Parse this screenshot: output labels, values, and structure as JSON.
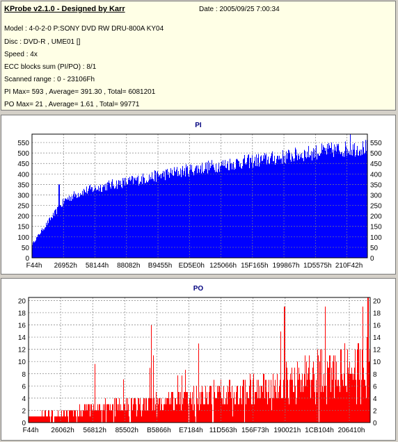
{
  "info": {
    "app_title": "KProbe v2.1.0 - Designed by Karr",
    "date": "Date : 2005/09/25 7:00:34",
    "model": "Model : 4-0-2-0 P:SONY    DVD RW DRU-800A  KY04",
    "disc": "Disc : DVD-R , UME01 []",
    "speed": "Speed : 4x",
    "ecc": "ECC blocks sum (PI/PO) : 8/1",
    "range": "Scanned range : 0 - 23106Fh",
    "pi_stats": "PI Max= 593 , Average= 391.30 , Total= 6081201",
    "po_stats": "PO Max= 21 , Average= 1.61 , Total= 99771"
  },
  "chart_data": [
    {
      "type": "bar",
      "title": "PI",
      "color": "#0000ff",
      "ylim": [
        0,
        590
      ],
      "yticks": [
        0,
        50,
        100,
        150,
        200,
        250,
        300,
        350,
        400,
        450,
        500,
        550
      ],
      "xtick_labels": [
        "F44h",
        "26952h",
        "58144h",
        "88082h",
        "B9455h",
        "ED5E0h",
        "125066h",
        "15F165h",
        "199867h",
        "1D5575h",
        "210F42h"
      ],
      "grid": true,
      "profile": [
        [
          0,
          70
        ],
        [
          0.02,
          120
        ],
        [
          0.05,
          190
        ],
        [
          0.1,
          300
        ],
        [
          0.15,
          340
        ],
        [
          0.22,
          370
        ],
        [
          0.3,
          395
        ],
        [
          0.4,
          430
        ],
        [
          0.5,
          460
        ],
        [
          0.6,
          485
        ],
        [
          0.7,
          505
        ],
        [
          0.8,
          530
        ],
        [
          0.88,
          550
        ],
        [
          0.95,
          560
        ],
        [
          1.0,
          565
        ]
      ],
      "spikes": [
        [
          0.08,
          350
        ],
        [
          0.95,
          593
        ]
      ]
    },
    {
      "type": "bar",
      "title": "PO",
      "color": "#ff0000",
      "ylim": [
        0,
        20.5
      ],
      "yticks": [
        0,
        2,
        4,
        6,
        8,
        10,
        12,
        14,
        16,
        18,
        20
      ],
      "xtick_labels": [
        "F44h",
        "26062h",
        "56812h",
        "85502h",
        "B5866h",
        "E7184h",
        "11D563h",
        "156F73h",
        "190021h",
        "1CB104h",
        "206410h"
      ],
      "grid": true,
      "profile": [
        [
          0,
          1
        ],
        [
          0.05,
          1.5
        ],
        [
          0.1,
          2
        ],
        [
          0.2,
          3
        ],
        [
          0.3,
          3.5
        ],
        [
          0.4,
          4
        ],
        [
          0.5,
          5
        ],
        [
          0.6,
          6
        ],
        [
          0.7,
          7
        ],
        [
          0.75,
          8.5
        ],
        [
          0.82,
          10
        ],
        [
          0.9,
          11
        ],
        [
          1.0,
          12
        ]
      ],
      "spikes": [
        [
          0.36,
          16
        ],
        [
          0.75,
          19
        ],
        [
          0.87,
          19
        ],
        [
          0.98,
          19
        ],
        [
          0.995,
          21
        ]
      ]
    }
  ]
}
